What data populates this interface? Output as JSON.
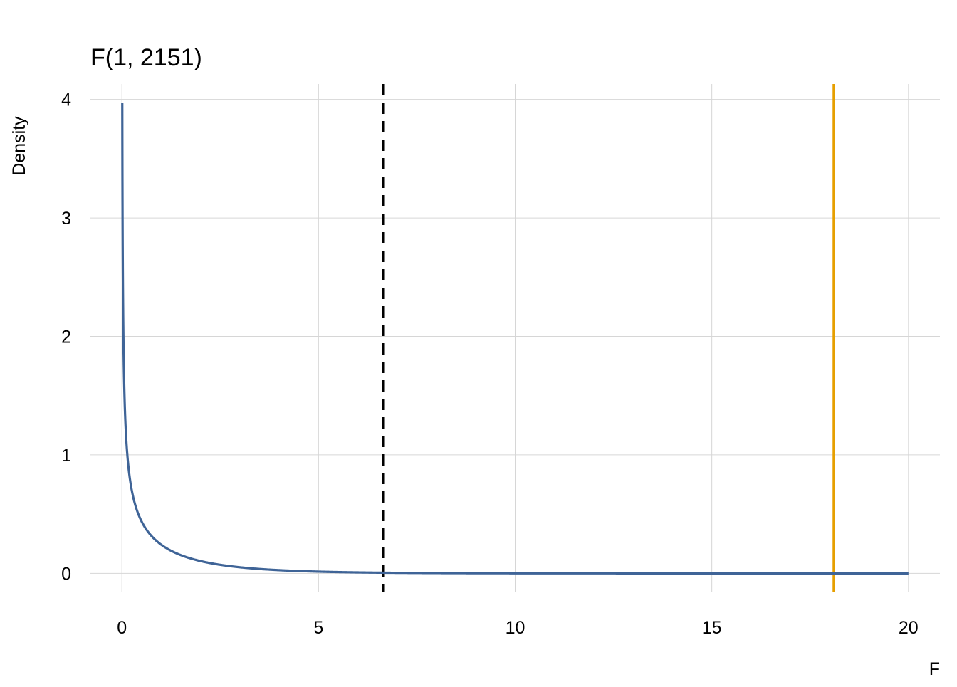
{
  "chart_data": {
    "type": "line",
    "title": "F(1, 2151)",
    "xlabel": "F",
    "ylabel": "Density",
    "distribution": {
      "family": "F",
      "df1": 1,
      "df2": 2151,
      "x_from": 0.01,
      "x_to": 20
    },
    "xlim": [
      -0.8,
      20.8
    ],
    "ylim": [
      -0.16,
      4.13
    ],
    "x_ticks": [
      0,
      5,
      10,
      15,
      20
    ],
    "y_ticks": [
      0,
      1,
      2,
      3,
      4
    ],
    "x_tick_labels": [
      "0",
      "5",
      "10",
      "15",
      "20"
    ],
    "y_tick_labels": [
      "0",
      "1",
      "2",
      "3",
      "4"
    ],
    "grid": true,
    "reference_lines": [
      {
        "x": 6.64,
        "style": "dashed",
        "color": "#000000"
      },
      {
        "x": 18.1,
        "style": "solid",
        "color": "#E69F00"
      }
    ],
    "curve_color": "#3F6497"
  }
}
